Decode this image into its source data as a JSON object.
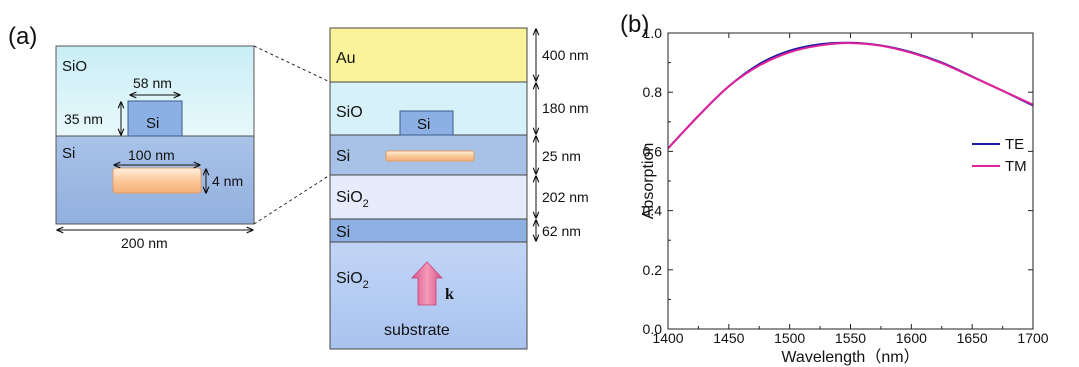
{
  "panel_a": {
    "label": "(a)",
    "inset": {
      "top_material": "SiO",
      "top_width": "58 nm",
      "ridge_height": "35 nm",
      "ridge_material": "Si",
      "bottom_material": "Si",
      "rod_width": "100 nm",
      "rod_height": "4 nm",
      "total_width": "200 nm"
    },
    "stack": {
      "layers": [
        {
          "name": "Au",
          "thickness": "400 nm",
          "color": "#faf39a"
        },
        {
          "name": "SiO",
          "thickness": "180 nm",
          "color": "#d6f2f8"
        },
        {
          "name": "Si",
          "thickness": "25 nm",
          "color": "#a7c2e6"
        },
        {
          "name": "SiO",
          "sub": "2",
          "thickness": "202 nm",
          "color": "#e6ecfb"
        },
        {
          "name": "Si",
          "thickness": "62 nm",
          "color": "#8eb0e2"
        },
        {
          "name": "SiO",
          "sub": "2",
          "thickness": "",
          "color": "#b9cff5"
        }
      ],
      "ridge_label": "Si",
      "k_label": "k",
      "substrate_label": "substrate"
    }
  },
  "panel_b": {
    "label": "(b)"
  },
  "chart_data": {
    "type": "line",
    "xlabel": "Wavelength（nm）",
    "ylabel": "Absorption",
    "xlim": [
      1400,
      1700
    ],
    "ylim": [
      0.0,
      1.0
    ],
    "xticks": [
      "1400",
      "1450",
      "1500",
      "1550",
      "1600",
      "1650",
      "1700"
    ],
    "yticks": [
      "0.0",
      "0.2",
      "0.4",
      "0.6",
      "0.8",
      "1.0"
    ],
    "legend_position": "right",
    "x": [
      1400,
      1425,
      1450,
      1475,
      1500,
      1525,
      1550,
      1575,
      1600,
      1625,
      1650,
      1675,
      1700
    ],
    "series": [
      {
        "name": "TE",
        "color": "#1a1aa6",
        "values": [
          0.61,
          0.72,
          0.82,
          0.895,
          0.94,
          0.962,
          0.967,
          0.958,
          0.935,
          0.9,
          0.853,
          0.805,
          0.755
        ]
      },
      {
        "name": "TM",
        "color": "#e0239a",
        "values": [
          0.61,
          0.72,
          0.82,
          0.89,
          0.935,
          0.958,
          0.966,
          0.957,
          0.933,
          0.898,
          0.852,
          0.805,
          0.758
        ]
      }
    ]
  }
}
